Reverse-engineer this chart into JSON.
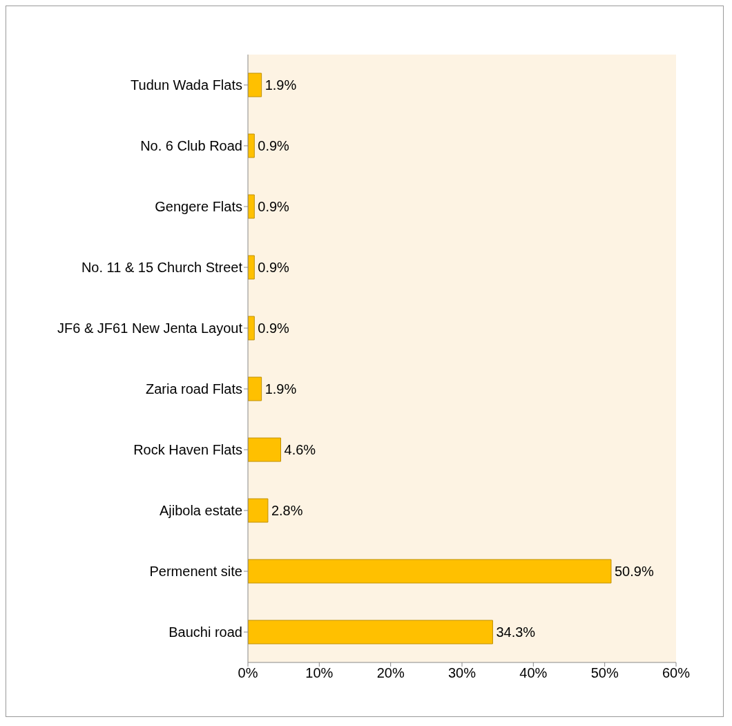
{
  "chart_data": {
    "type": "bar",
    "orientation": "horizontal",
    "categories": [
      "Tudun Wada Flats",
      "No. 6 Club Road",
      "Gengere Flats",
      "No. 11 & 15 Church Street",
      "JF6 & JF61 New Jenta Layout",
      "Zaria road Flats",
      "Rock Haven Flats",
      "Ajibola estate",
      "Permenent site",
      "Bauchi road"
    ],
    "values": [
      1.9,
      0.9,
      0.9,
      0.9,
      0.9,
      1.9,
      4.6,
      2.8,
      50.9,
      34.3
    ],
    "value_labels": [
      "1.9%",
      "0.9%",
      "0.9%",
      "0.9%",
      "0.9%",
      "1.9%",
      "4.6%",
      "2.8%",
      "50.9%",
      "34.3%"
    ],
    "color": "#ffc000",
    "xlim": [
      0,
      60
    ],
    "xticks": [
      {
        "value": 0,
        "label": "0%"
      },
      {
        "value": 10,
        "label": "10%"
      },
      {
        "value": 20,
        "label": "20%"
      },
      {
        "value": 30,
        "label": "30%"
      },
      {
        "value": 40,
        "label": "40%"
      },
      {
        "value": 50,
        "label": "50%"
      },
      {
        "value": 60,
        "label": "60%"
      }
    ],
    "grid": false,
    "legend": false
  }
}
